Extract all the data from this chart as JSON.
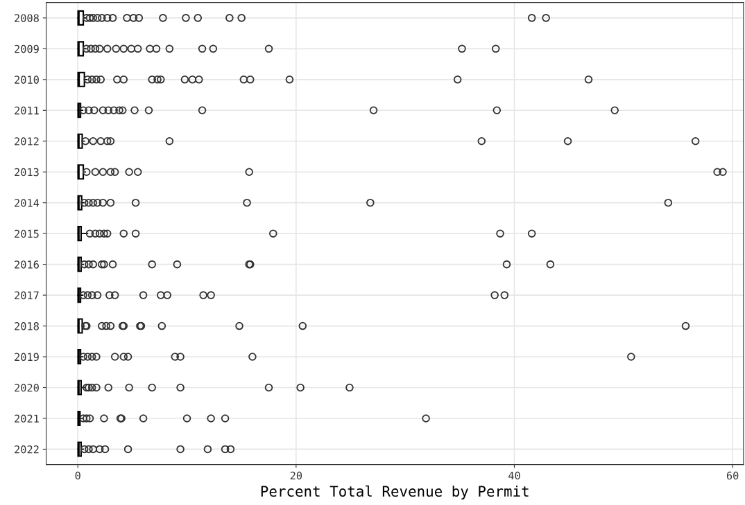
{
  "chart_data": {
    "type": "box",
    "orientation": "horizontal",
    "xlabel": "Percent Total Revenue by Permit",
    "categories": [
      "2008",
      "2009",
      "2010",
      "2011",
      "2012",
      "2013",
      "2014",
      "2015",
      "2016",
      "2017",
      "2018",
      "2019",
      "2020",
      "2021",
      "2022"
    ],
    "xlim": [
      -2.9,
      61
    ],
    "xticks": [
      0,
      20,
      40,
      60
    ],
    "grid": true,
    "marker": "circle",
    "boxes": [
      {
        "low": 0,
        "q1": 0.02,
        "median": 0.08,
        "q3": 0.5,
        "high": 0.7,
        "outliers": [
          0.8,
          1.1,
          1.4,
          1.8,
          2.2,
          2.7,
          3.2,
          4.5,
          5.1,
          5.6,
          7.8,
          9.9,
          11.0,
          13.9,
          15.0,
          41.6,
          42.9
        ]
      },
      {
        "low": 0,
        "q1": 0.02,
        "median": 0.08,
        "q3": 0.5,
        "high": 0.75,
        "outliers": [
          0.8,
          1.2,
          1.6,
          2.0,
          2.7,
          3.5,
          4.2,
          4.9,
          5.5,
          6.6,
          7.2,
          8.4,
          11.4,
          12.4,
          17.5,
          35.2,
          38.3
        ]
      },
      {
        "low": 0,
        "q1": 0.02,
        "median": 0.1,
        "q3": 0.6,
        "high": 0.85,
        "outliers": [
          0.9,
          1.3,
          1.7,
          2.1,
          3.6,
          4.2,
          6.8,
          7.3,
          7.6,
          9.8,
          10.5,
          11.1,
          15.2,
          15.8,
          19.4,
          34.8,
          46.8
        ]
      },
      {
        "low": 0,
        "q1": 0.02,
        "median": 0.08,
        "q3": 0.25,
        "high": 0.45,
        "outliers": [
          0.5,
          1.0,
          1.5,
          2.3,
          2.8,
          3.3,
          3.8,
          4.1,
          5.2,
          6.5,
          11.4,
          27.1,
          38.4,
          49.2
        ]
      },
      {
        "low": 0,
        "q1": 0.02,
        "median": 0.08,
        "q3": 0.4,
        "high": 0.6,
        "outliers": [
          0.7,
          1.4,
          2.1,
          2.7,
          3.0,
          8.4,
          37.0,
          44.9,
          56.6
        ]
      },
      {
        "low": 0,
        "q1": 0.02,
        "median": 0.08,
        "q3": 0.5,
        "high": 0.7,
        "outliers": [
          0.8,
          1.6,
          2.3,
          3.0,
          3.4,
          4.7,
          5.5,
          15.7,
          58.6,
          59.1
        ]
      },
      {
        "low": 0,
        "q1": 0.02,
        "median": 0.08,
        "q3": 0.35,
        "high": 0.55,
        "outliers": [
          0.6,
          1.0,
          1.4,
          1.8,
          2.3,
          3.0,
          5.3,
          15.5,
          26.8,
          54.1
        ]
      },
      {
        "low": 0,
        "q1": 0.02,
        "median": 0.08,
        "q3": 0.3,
        "high": 0.9,
        "outliers": [
          1.1,
          1.6,
          2.0,
          2.4,
          2.7,
          4.2,
          5.3,
          17.9,
          38.7,
          41.6
        ]
      },
      {
        "low": 0,
        "q1": 0.02,
        "median": 0.08,
        "q3": 0.3,
        "high": 0.5,
        "outliers": [
          0.6,
          1.0,
          1.4,
          2.2,
          2.4,
          3.2,
          6.8,
          9.1,
          15.7,
          15.8,
          39.3,
          43.3
        ]
      },
      {
        "low": 0,
        "q1": 0.02,
        "median": 0.08,
        "q3": 0.25,
        "high": 0.45,
        "outliers": [
          0.5,
          0.9,
          1.3,
          1.8,
          2.9,
          3.4,
          6.0,
          7.6,
          8.2,
          11.5,
          12.2,
          38.2,
          39.1
        ]
      },
      {
        "low": 0,
        "q1": 0.02,
        "median": 0.08,
        "q3": 0.4,
        "high": 0.6,
        "outliers": [
          0.7,
          0.8,
          2.2,
          2.6,
          3.0,
          4.1,
          4.2,
          5.7,
          5.8,
          7.7,
          14.8,
          20.6,
          55.7
        ]
      },
      {
        "low": 0,
        "q1": 0.02,
        "median": 0.08,
        "q3": 0.25,
        "high": 0.45,
        "outliers": [
          0.5,
          0.9,
          1.3,
          1.7,
          3.4,
          4.2,
          4.6,
          8.9,
          9.4,
          16.0,
          50.7
        ]
      },
      {
        "low": 0,
        "q1": 0.02,
        "median": 0.08,
        "q3": 0.3,
        "high": 0.7,
        "outliers": [
          0.8,
          1.0,
          1.3,
          1.7,
          2.8,
          4.7,
          6.8,
          9.4,
          17.5,
          20.4,
          24.9
        ]
      },
      {
        "low": 0,
        "q1": 0.02,
        "median": 0.08,
        "q3": 0.2,
        "high": 0.45,
        "outliers": [
          0.5,
          0.8,
          1.1,
          2.4,
          3.9,
          4.0,
          6.0,
          10.0,
          12.2,
          13.5,
          31.9
        ]
      },
      {
        "low": 0,
        "q1": 0.02,
        "median": 0.08,
        "q3": 0.3,
        "high": 0.5,
        "outliers": [
          0.6,
          1.0,
          1.4,
          2.0,
          2.5,
          4.6,
          9.4,
          11.9,
          13.5,
          14.0
        ]
      }
    ]
  }
}
